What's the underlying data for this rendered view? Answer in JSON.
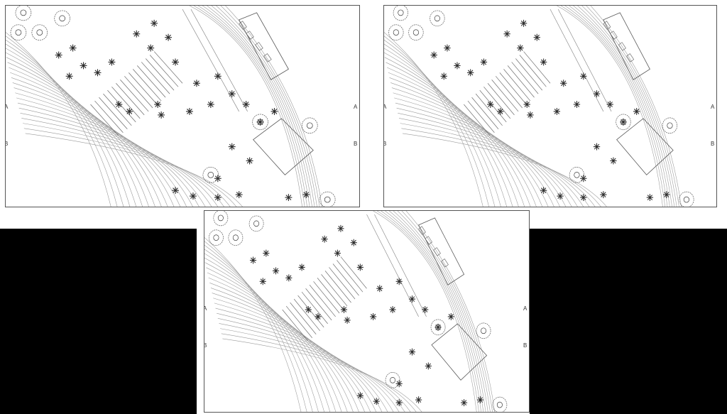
{
  "sheets": [
    {
      "id": "top-left",
      "marker_a": "A",
      "marker_b": "B"
    },
    {
      "id": "top-right",
      "marker_a": "A",
      "marker_b": "B"
    },
    {
      "id": "bottom-center",
      "marker_a": "A",
      "marker_b": "B"
    }
  ],
  "colors": {
    "line": "#9a9a9a",
    "tree": "#2b2b2b",
    "panel": "#000000"
  }
}
